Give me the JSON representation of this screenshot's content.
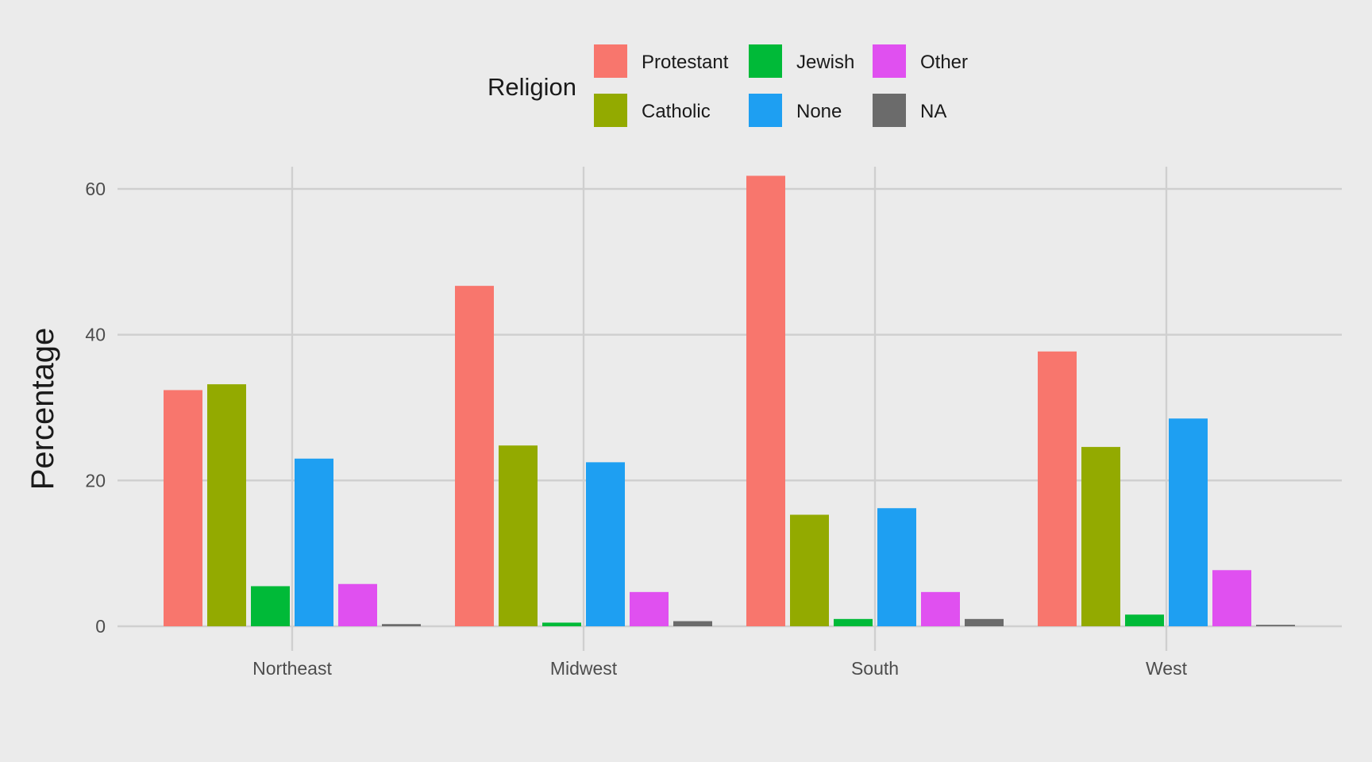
{
  "chart_data": {
    "type": "bar",
    "title": "",
    "xlabel": "",
    "ylabel": "Percentage",
    "ylim": [
      -2,
      65
    ],
    "yticks": [
      0,
      20,
      40,
      60
    ],
    "grid": true,
    "legend": {
      "title": "Religion",
      "position": "top"
    },
    "categories": [
      "Northeast",
      "Midwest",
      "South",
      "West"
    ],
    "series": [
      {
        "name": "Protestant",
        "color": "#F8766D",
        "values": [
          32.4,
          46.7,
          61.8,
          37.7
        ]
      },
      {
        "name": "Catholic",
        "color": "#93AA00",
        "values": [
          33.2,
          24.8,
          15.3,
          24.6
        ]
      },
      {
        "name": "Jewish",
        "color": "#00BA38",
        "values": [
          5.5,
          0.5,
          1.0,
          1.6
        ]
      },
      {
        "name": "None",
        "color": "#1E9FF2",
        "values": [
          23.0,
          22.5,
          16.2,
          28.5
        ]
      },
      {
        "name": "Other",
        "color": "#E050F0",
        "values": [
          5.8,
          4.7,
          4.7,
          7.7
        ]
      },
      {
        "name": "NA",
        "color": "#6B6B6B",
        "values": [
          0.3,
          0.7,
          1.0,
          0.2
        ]
      }
    ]
  }
}
